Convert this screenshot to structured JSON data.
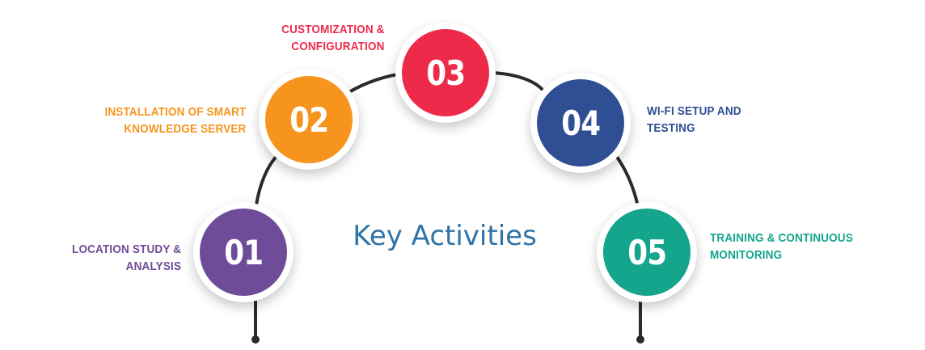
{
  "title": "Key Activities",
  "colors": {
    "arc": "#2b2b2b",
    "title": "#2f73a8"
  },
  "steps": [
    {
      "number": "01",
      "lines": [
        "LOCATION STUDY &",
        "ANALYSIS"
      ],
      "color": "#6e4c97"
    },
    {
      "number": "02",
      "lines": [
        "INSTALLATION OF SMART",
        "KNOWLEDGE SERVER"
      ],
      "color": "#f7941d"
    },
    {
      "number": "03",
      "lines": [
        "CUSTOMIZATION &",
        "CONFIGURATION"
      ],
      "color": "#ee2a4a"
    },
    {
      "number": "04",
      "lines": [
        "WI-FI SETUP AND",
        "TESTING"
      ],
      "color": "#2f4e94"
    },
    {
      "number": "05",
      "lines": [
        "TRAINING & CONTINUOUS",
        "MONITORING"
      ],
      "color": "#14a58c"
    }
  ]
}
